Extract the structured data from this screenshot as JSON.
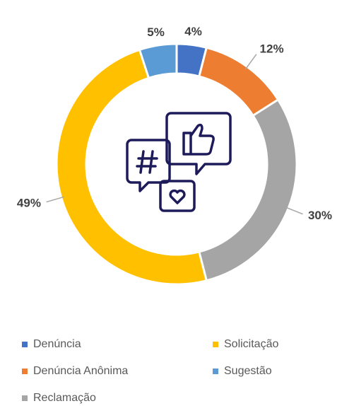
{
  "chart_data": {
    "type": "donut",
    "categories": [
      "Denúncia",
      "Denúncia Anônima",
      "Reclamação",
      "Solicitação",
      "Sugestão"
    ],
    "values": [
      4,
      12,
      30,
      49,
      5
    ],
    "value_labels": [
      "4%",
      "12%",
      "30%",
      "49%",
      "5%"
    ],
    "colors": [
      "#4472c4",
      "#ed7d31",
      "#a5a5a5",
      "#ffc000",
      "#5b9bd5"
    ],
    "legend": "bottom"
  }
}
